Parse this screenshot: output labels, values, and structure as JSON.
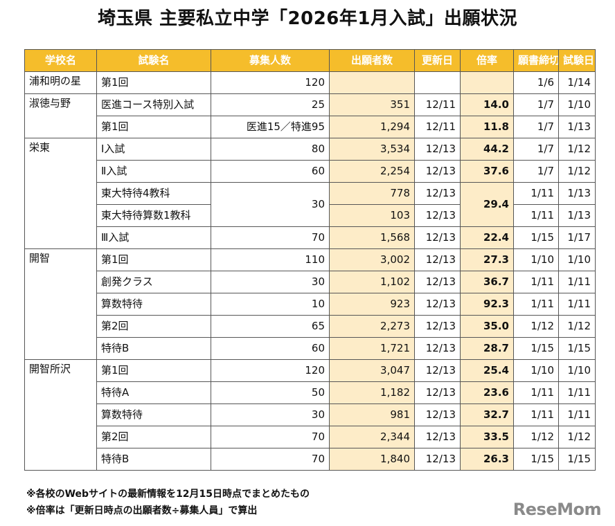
{
  "title": "埼玉県 主要私立中学「2026年1月入試」出願状況",
  "headers": [
    "学校名",
    "試験名",
    "募集人数",
    "出願者数",
    "更新日",
    "倍率",
    "願書締切",
    "試験日"
  ],
  "rows": [
    {
      "school": "浦和明の星",
      "exam": "第1回",
      "capacity": "120",
      "applicants": "",
      "updated": "",
      "ratio": "",
      "deadline": "1/6",
      "date": "1/14"
    },
    {
      "school": "淑徳与野",
      "exam": "医進コース特別入試",
      "capacity": "25",
      "applicants": "351",
      "updated": "12/11",
      "ratio": "14.0",
      "deadline": "1/7",
      "date": "1/10"
    },
    {
      "school": "",
      "exam": "第1回",
      "capacity": "医進15／特進95",
      "applicants": "1,294",
      "updated": "12/11",
      "ratio": "11.8",
      "deadline": "1/7",
      "date": "1/13"
    },
    {
      "school": "栄東",
      "exam": "Ⅰ入試",
      "capacity": "80",
      "applicants": "3,534",
      "updated": "12/13",
      "ratio": "44.2",
      "deadline": "1/7",
      "date": "1/12"
    },
    {
      "school": "",
      "exam": "Ⅱ入試",
      "capacity": "60",
      "applicants": "2,254",
      "updated": "12/13",
      "ratio": "37.6",
      "deadline": "1/7",
      "date": "1/12"
    },
    {
      "school": "",
      "exam": "東大特待4教科",
      "capacity": "30",
      "applicants": "778",
      "updated": "12/13",
      "ratio": "29.4",
      "deadline": "1/11",
      "date": "1/13"
    },
    {
      "school": "",
      "exam": "東大特待算数1教科",
      "capacity": "",
      "applicants": "103",
      "updated": "12/13",
      "ratio": "",
      "deadline": "1/11",
      "date": "1/13"
    },
    {
      "school": "",
      "exam": "Ⅲ入試",
      "capacity": "70",
      "applicants": "1,568",
      "updated": "12/13",
      "ratio": "22.4",
      "deadline": "1/15",
      "date": "1/17"
    },
    {
      "school": "開智",
      "exam": "第1回",
      "capacity": "110",
      "applicants": "3,002",
      "updated": "12/13",
      "ratio": "27.3",
      "deadline": "1/10",
      "date": "1/10"
    },
    {
      "school": "",
      "exam": "創発クラス",
      "capacity": "30",
      "applicants": "1,102",
      "updated": "12/13",
      "ratio": "36.7",
      "deadline": "1/11",
      "date": "1/11"
    },
    {
      "school": "",
      "exam": "算数特待",
      "capacity": "10",
      "applicants": "923",
      "updated": "12/13",
      "ratio": "92.3",
      "deadline": "1/11",
      "date": "1/11"
    },
    {
      "school": "",
      "exam": "第2回",
      "capacity": "65",
      "applicants": "2,273",
      "updated": "12/13",
      "ratio": "35.0",
      "deadline": "1/12",
      "date": "1/12"
    },
    {
      "school": "",
      "exam": "特待B",
      "capacity": "60",
      "applicants": "1,721",
      "updated": "12/13",
      "ratio": "28.7",
      "deadline": "1/15",
      "date": "1/15"
    },
    {
      "school": "開智所沢",
      "exam": "第1回",
      "capacity": "120",
      "applicants": "3,047",
      "updated": "12/13",
      "ratio": "25.4",
      "deadline": "1/10",
      "date": "1/10"
    },
    {
      "school": "",
      "exam": "特待A",
      "capacity": "50",
      "applicants": "1,182",
      "updated": "12/13",
      "ratio": "23.6",
      "deadline": "1/11",
      "date": "1/11"
    },
    {
      "school": "",
      "exam": "算数特待",
      "capacity": "30",
      "applicants": "981",
      "updated": "12/13",
      "ratio": "32.7",
      "deadline": "1/11",
      "date": "1/11"
    },
    {
      "school": "",
      "exam": "第2回",
      "capacity": "70",
      "applicants": "2,344",
      "updated": "12/13",
      "ratio": "33.5",
      "deadline": "1/12",
      "date": "1/12"
    },
    {
      "school": "",
      "exam": "特待B",
      "capacity": "70",
      "applicants": "1,840",
      "updated": "12/13",
      "ratio": "26.3",
      "deadline": "1/15",
      "date": "1/15"
    }
  ],
  "notes": [
    "※各校のWebサイトの最新情報を12月15日時点でまとめたもの",
    "※倍率は「更新日時点の出願者数÷募集人員」で算出"
  ],
  "logo": "ReseMom",
  "colors": {
    "header_bg": "#f5bd2b",
    "highlight_bg": "#fdecc8"
  }
}
